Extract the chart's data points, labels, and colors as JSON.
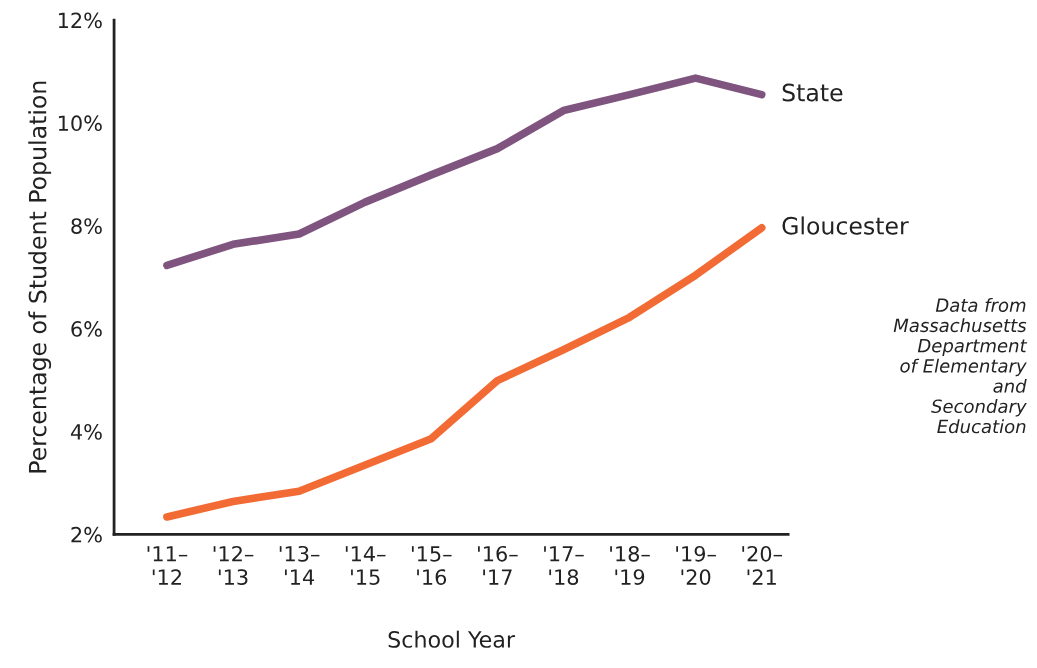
{
  "chart_data": {
    "type": "line",
    "xlabel": "School Year",
    "ylabel": "Percentage of Student Population",
    "categories": [
      "'11–\n'12",
      "'12–\n'13",
      "'13–\n'14",
      "'14–\n'15",
      "'15–\n'16",
      "'16–\n'17",
      "'17–\n'18",
      "'18–\n'19",
      "'19–\n'20",
      "'20–\n'21"
    ],
    "ylim": [
      2,
      12
    ],
    "yticks": [
      {
        "value": 2,
        "label": "2%"
      },
      {
        "value": 4,
        "label": "4%"
      },
      {
        "value": 6,
        "label": "6%"
      },
      {
        "value": 8,
        "label": "8%"
      },
      {
        "value": 10,
        "label": "10%"
      },
      {
        "value": 12,
        "label": "12%"
      }
    ],
    "series": [
      {
        "name": "State",
        "color": "#7f5580",
        "values": [
          7.23,
          7.64,
          7.84,
          8.46,
          8.99,
          9.5,
          10.24,
          10.55,
          10.87,
          10.55
        ]
      },
      {
        "name": "Gloucester",
        "color": "#f26b35",
        "values": [
          2.34,
          2.64,
          2.84,
          3.35,
          3.86,
          4.99,
          5.59,
          6.22,
          7.04,
          7.96
        ]
      }
    ],
    "grid": false,
    "legend": false,
    "marker": "none",
    "line_style": "solid",
    "annotations": [
      "Data from\nMassachusetts\nDepartment\nof Elementary\nand\nSecondary\nEducation"
    ]
  }
}
